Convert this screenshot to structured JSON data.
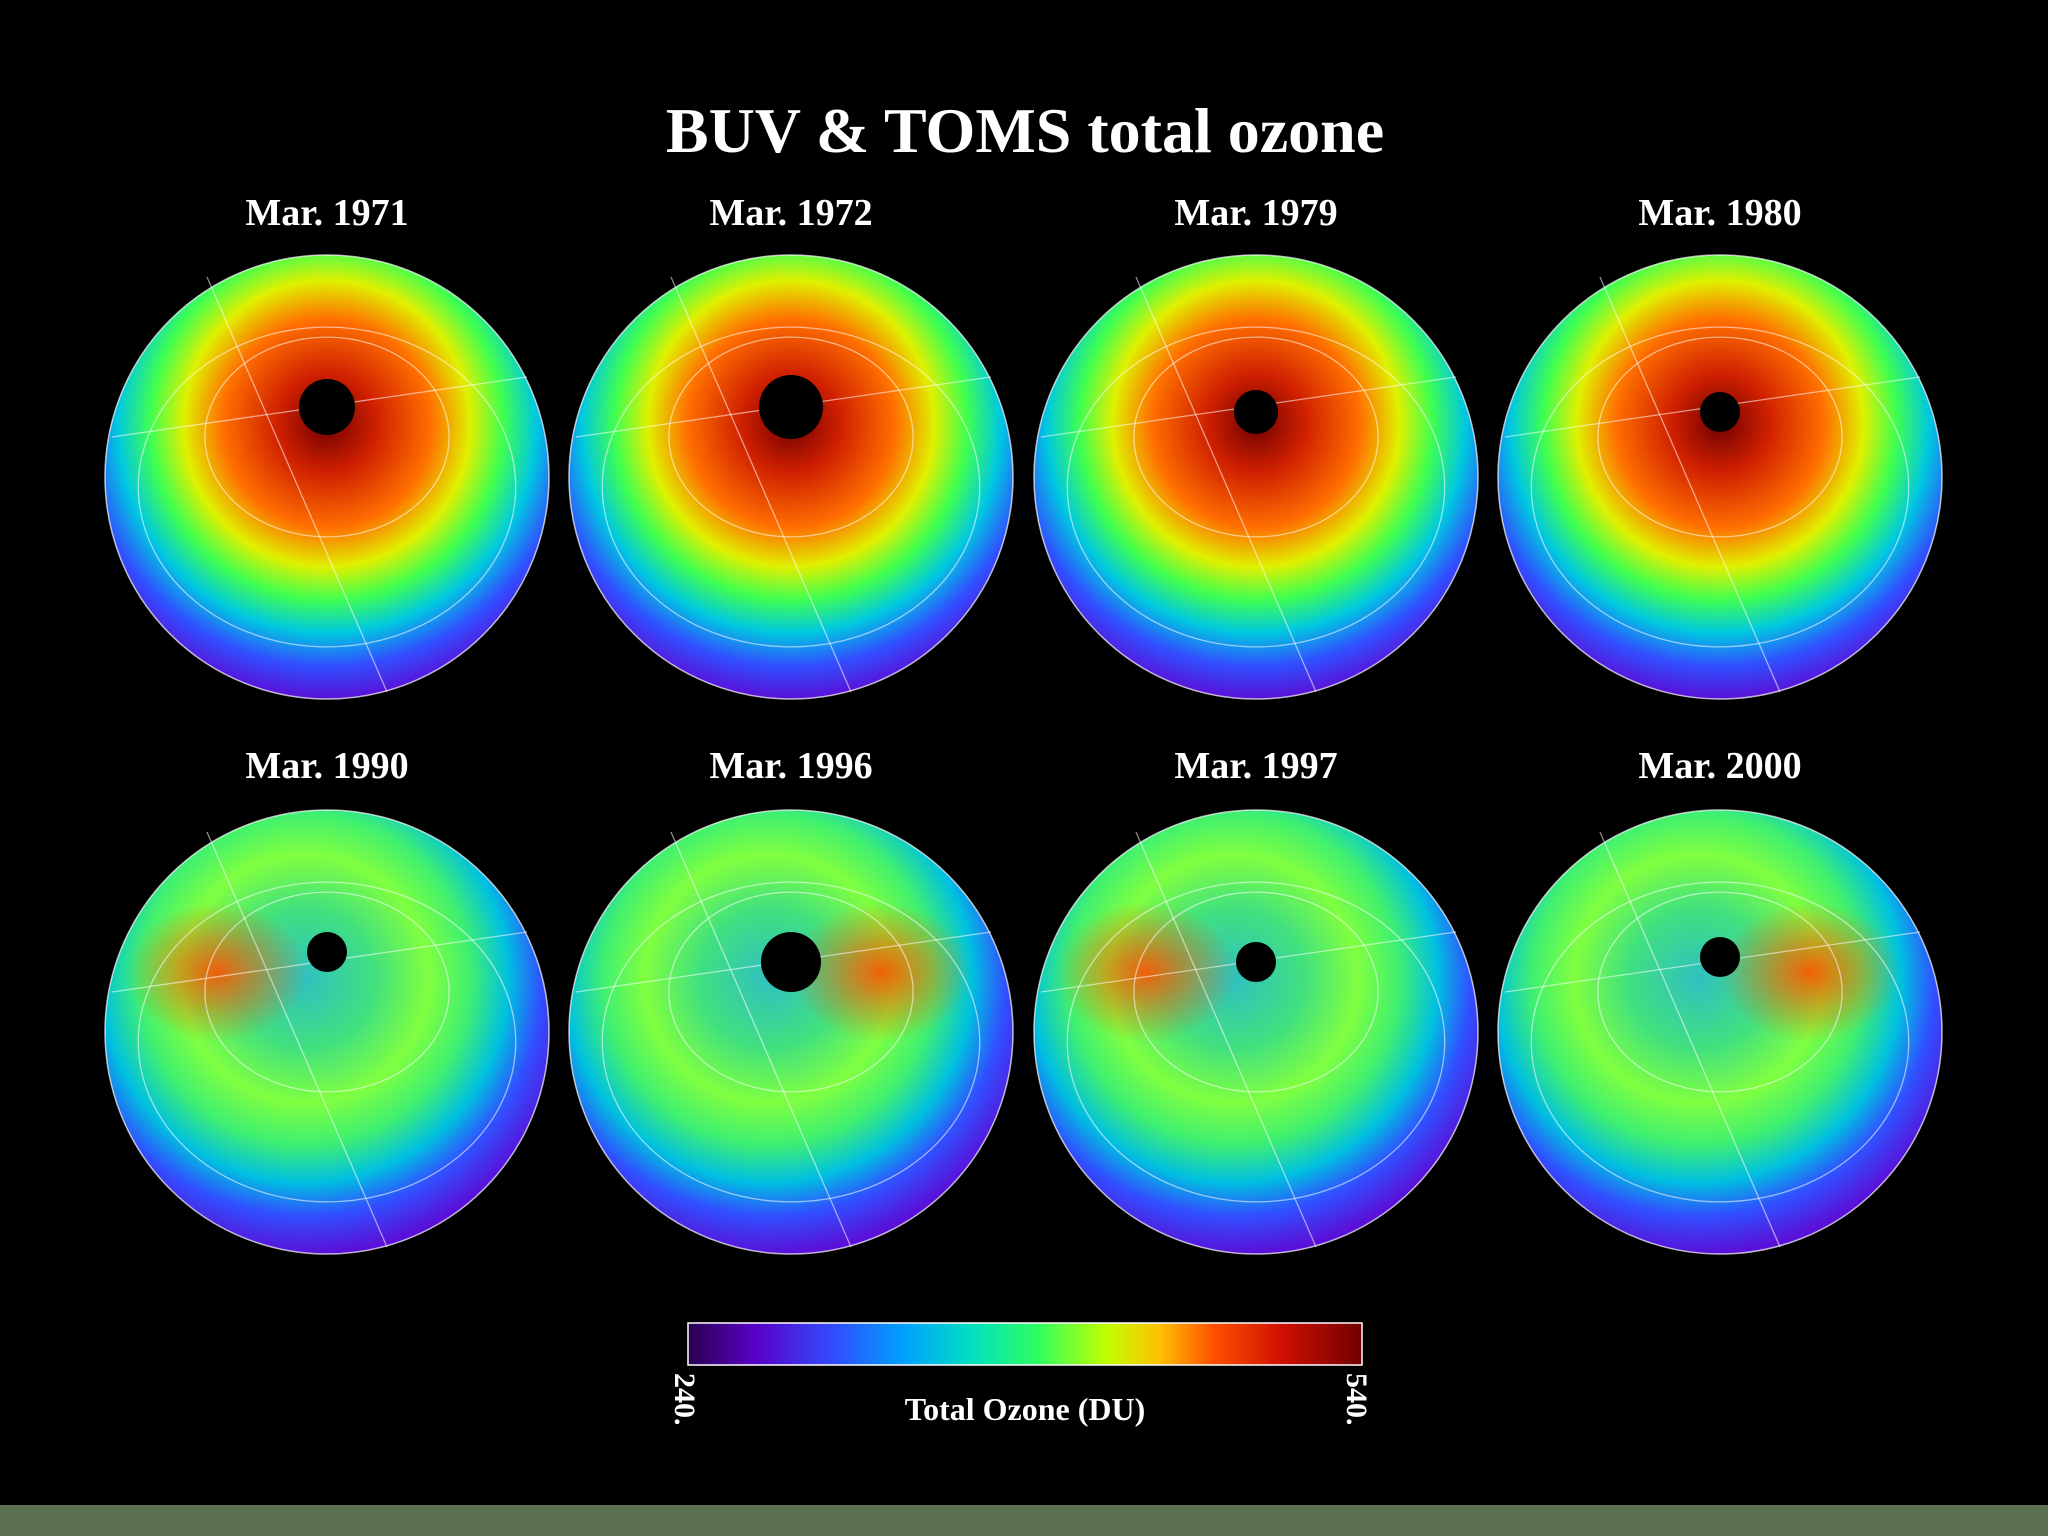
{
  "title": "BUV & TOMS total ozone",
  "panels": [
    {
      "label": "Mar. 1971"
    },
    {
      "label": "Mar. 1972"
    },
    {
      "label": "Mar. 1979"
    },
    {
      "label": "Mar. 1980"
    },
    {
      "label": "Mar. 1990"
    },
    {
      "label": "Mar. 1996"
    },
    {
      "label": "Mar. 1997"
    },
    {
      "label": "Mar. 2000"
    }
  ],
  "colorbar": {
    "title": "Total Ozone (DU)",
    "min_label": "240.",
    "max_label": "540."
  }
}
